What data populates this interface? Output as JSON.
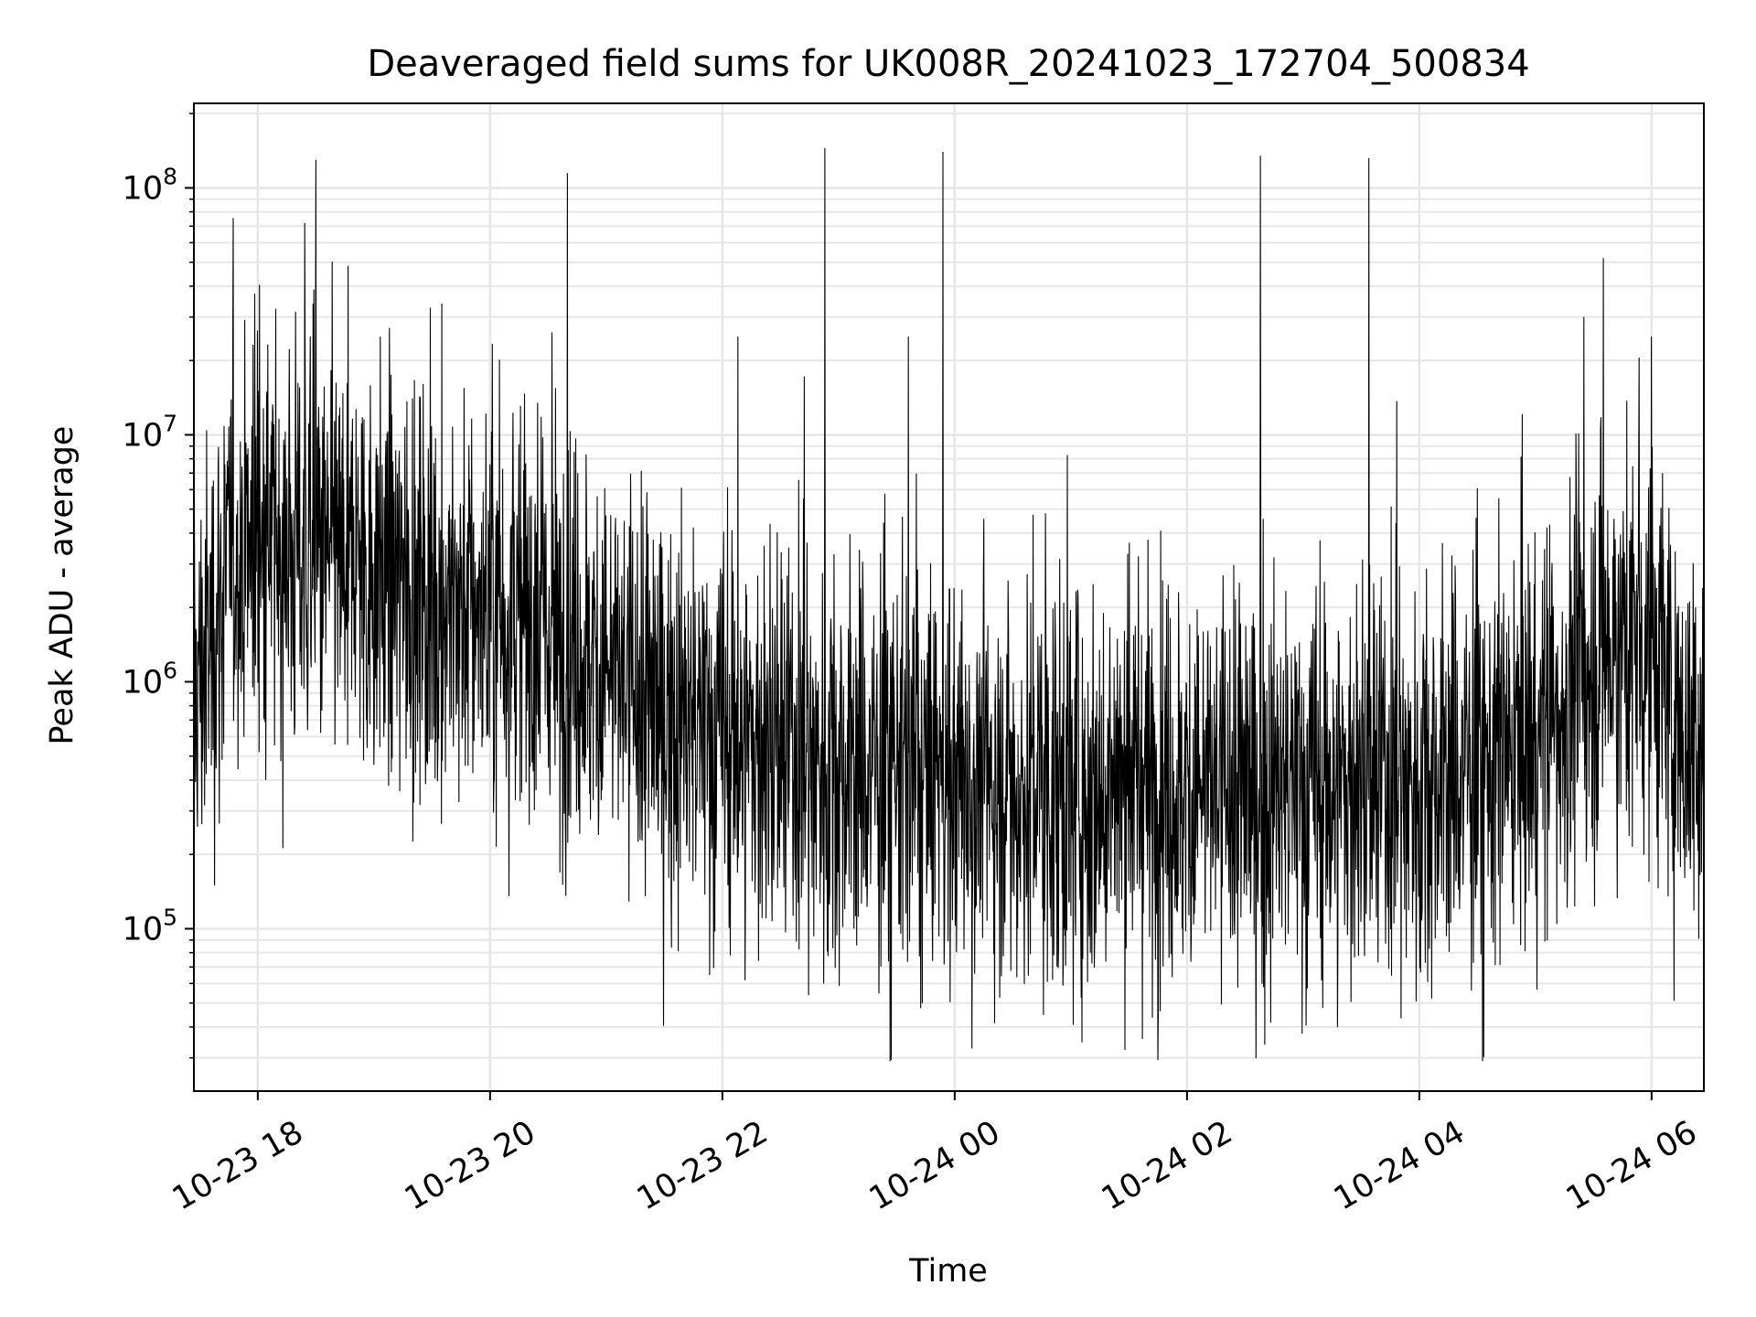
{
  "chart_data": {
    "type": "line",
    "title": "Deaveraged field sums for UK008R_20241023_172704_500834",
    "xlabel": "Time",
    "ylabel": "Peak ADU - average",
    "yscale": "log",
    "ylim": [
      22000,
      220000000
    ],
    "xlim": [
      "2024-10-23 17:27",
      "2024-10-24 06:27"
    ],
    "grid": true,
    "x_ticks": [
      {
        "value": "2024-10-23 18:00",
        "label": "10-23 18"
      },
      {
        "value": "2024-10-23 20:00",
        "label": "10-23 20"
      },
      {
        "value": "2024-10-23 22:00",
        "label": "10-23 22"
      },
      {
        "value": "2024-10-24 00:00",
        "label": "10-24 00"
      },
      {
        "value": "2024-10-24 02:00",
        "label": "10-24 02"
      },
      {
        "value": "2024-10-24 04:00",
        "label": "10-24 04"
      },
      {
        "value": "2024-10-24 06:00",
        "label": "10-24 06"
      }
    ],
    "y_ticks": [
      {
        "value": 100000,
        "base": "10",
        "exp": "5"
      },
      {
        "value": 1000000,
        "base": "10",
        "exp": "6"
      },
      {
        "value": 10000000,
        "base": "10",
        "exp": "7"
      },
      {
        "value": 100000000,
        "base": "10",
        "exp": "8"
      }
    ],
    "line_color": "#000000",
    "grid_color": "#e6e6e6",
    "series": [
      {
        "x": [
          "2024-10-23 17:30",
          "2024-10-23 17:45",
          "2024-10-23 18:00",
          "2024-10-23 18:15",
          "2024-10-23 18:30",
          "2024-10-23 18:45",
          "2024-10-23 19:00",
          "2024-10-23 19:15",
          "2024-10-23 19:30",
          "2024-10-23 19:45",
          "2024-10-23 20:00",
          "2024-10-23 20:15",
          "2024-10-23 20:30",
          "2024-10-23 20:45",
          "2024-10-23 21:00",
          "2024-10-23 21:15",
          "2024-10-23 21:30",
          "2024-10-23 21:45",
          "2024-10-23 22:00",
          "2024-10-23 22:15",
          "2024-10-23 22:30",
          "2024-10-23 22:45",
          "2024-10-23 23:00",
          "2024-10-23 23:15",
          "2024-10-23 23:30",
          "2024-10-23 23:45",
          "2024-10-24 00:00",
          "2024-10-24 00:15",
          "2024-10-24 00:30",
          "2024-10-24 00:45",
          "2024-10-24 01:00",
          "2024-10-24 01:15",
          "2024-10-24 01:30",
          "2024-10-24 01:45",
          "2024-10-24 02:00",
          "2024-10-24 02:15",
          "2024-10-24 02:30",
          "2024-10-24 02:45",
          "2024-10-24 03:00",
          "2024-10-24 03:15",
          "2024-10-24 03:30",
          "2024-10-24 03:45",
          "2024-10-24 04:00",
          "2024-10-24 04:15",
          "2024-10-24 04:30",
          "2024-10-24 04:45",
          "2024-10-24 05:00",
          "2024-10-24 05:15",
          "2024-10-24 05:30",
          "2024-10-24 05:45",
          "2024-10-24 06:00",
          "2024-10-24 06:15"
        ],
        "y": [
          1000000,
          3000000,
          4000000,
          3500000,
          3200000,
          3000000,
          2800000,
          2500000,
          2200000,
          2000000,
          1900000,
          1800000,
          1600000,
          1400000,
          1100000,
          900000,
          750000,
          650000,
          600000,
          550000,
          500000,
          480000,
          460000,
          440000,
          420000,
          400000,
          400000,
          390000,
          380000,
          380000,
          370000,
          370000,
          370000,
          360000,
          360000,
          360000,
          360000,
          360000,
          360000,
          360000,
          370000,
          380000,
          400000,
          420000,
          450000,
          480000,
          600000,
          800000,
          1200000,
          1500000,
          1400000,
          600000
        ]
      }
    ],
    "spikes": [
      {
        "x": "2024-10-23 18:30",
        "y": 130000000
      },
      {
        "x": "2024-10-23 20:40",
        "y": 115000000
      },
      {
        "x": "2024-10-23 22:53",
        "y": 145000000
      },
      {
        "x": "2024-10-23 23:54",
        "y": 140000000
      },
      {
        "x": "2024-10-24 02:38",
        "y": 135000000
      },
      {
        "x": "2024-10-24 03:34",
        "y": 132000000
      },
      {
        "x": "2024-10-24 05:35",
        "y": 52000000
      },
      {
        "x": "2024-10-23 19:35",
        "y": 34000000
      },
      {
        "x": "2024-10-23 20:32",
        "y": 26000000
      },
      {
        "x": "2024-10-23 22:08",
        "y": 25000000
      },
      {
        "x": "2024-10-23 23:36",
        "y": 25000000
      },
      {
        "x": "2024-10-24 05:25",
        "y": 30000000
      },
      {
        "x": "2024-10-24 06:00",
        "y": 25000000
      }
    ]
  }
}
